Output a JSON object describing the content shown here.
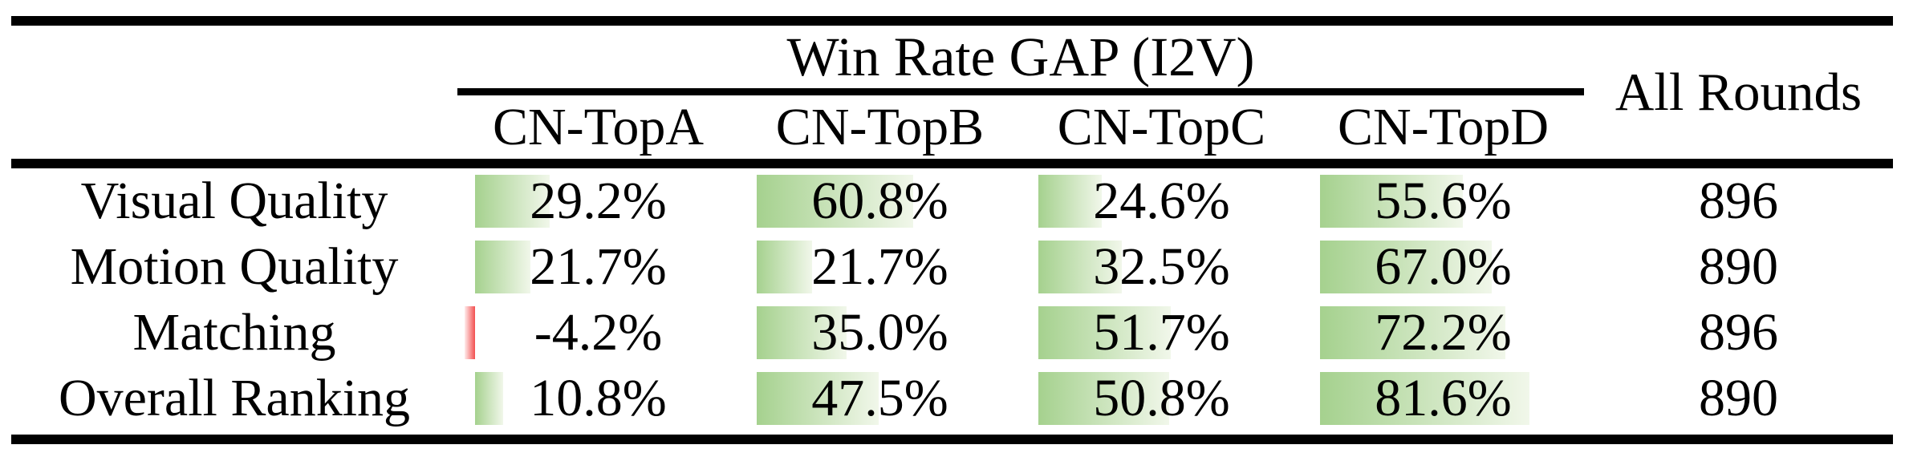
{
  "colors": {
    "background": "#ffffff",
    "text": "#000000",
    "rule": "#000000",
    "bar_positive_start": "#a5d18e",
    "bar_positive_end": "#f1f7ea",
    "bar_negative_start": "#f25050",
    "bar_negative_end": "#ffecec"
  },
  "table": {
    "group_header": "Win Rate GAP (I2V)",
    "all_rounds_header": "All Rounds",
    "columns": [
      "CN-TopA",
      "CN-TopB",
      "CN-TopC",
      "CN-TopD"
    ],
    "rows": [
      {
        "label": "Visual Quality",
        "cells": [
          {
            "text": "29.2%",
            "value": 29.2
          },
          {
            "text": "60.8%",
            "value": 60.8
          },
          {
            "text": "24.6%",
            "value": 24.6
          },
          {
            "text": "55.6%",
            "value": 55.6
          }
        ],
        "all_rounds": "896"
      },
      {
        "label": "Motion Quality",
        "cells": [
          {
            "text": "21.7%",
            "value": 21.7
          },
          {
            "text": "21.7%",
            "value": 21.7
          },
          {
            "text": "32.5%",
            "value": 32.5
          },
          {
            "text": "67.0%",
            "value": 67.0
          }
        ],
        "all_rounds": "890"
      },
      {
        "label": "Matching",
        "cells": [
          {
            "text": "-4.2%",
            "value": -4.2
          },
          {
            "text": "35.0%",
            "value": 35.0
          },
          {
            "text": "51.7%",
            "value": 51.7
          },
          {
            "text": "72.2%",
            "value": 72.2
          }
        ],
        "all_rounds": "896"
      },
      {
        "label": "Overall Ranking",
        "cells": [
          {
            "text": "10.8%",
            "value": 10.8
          },
          {
            "text": "47.5%",
            "value": 47.5
          },
          {
            "text": "50.8%",
            "value": 50.8
          },
          {
            "text": "81.6%",
            "value": 81.6
          }
        ],
        "all_rounds": "890"
      }
    ]
  },
  "chart_data": {
    "type": "table",
    "title": "Win Rate GAP (I2V)",
    "columns": [
      "CN-TopA",
      "CN-TopB",
      "CN-TopC",
      "CN-TopD",
      "All Rounds"
    ],
    "categories": [
      "Visual Quality",
      "Motion Quality",
      "Matching",
      "Overall Ranking"
    ],
    "series": [
      {
        "name": "CN-TopA",
        "values": [
          29.2,
          21.7,
          -4.2,
          10.8
        ]
      },
      {
        "name": "CN-TopB",
        "values": [
          60.8,
          21.7,
          35.0,
          47.5
        ]
      },
      {
        "name": "CN-TopC",
        "values": [
          24.6,
          32.5,
          51.7,
          50.8
        ]
      },
      {
        "name": "CN-TopD",
        "values": [
          55.6,
          67.0,
          72.2,
          81.6
        ]
      }
    ],
    "all_rounds": [
      896,
      890,
      896,
      890
    ],
    "value_unit": "%",
    "bar_range_percent": [
      0,
      100
    ],
    "layout": "in-cell data bars, green gradient for positive, red for negative"
  }
}
